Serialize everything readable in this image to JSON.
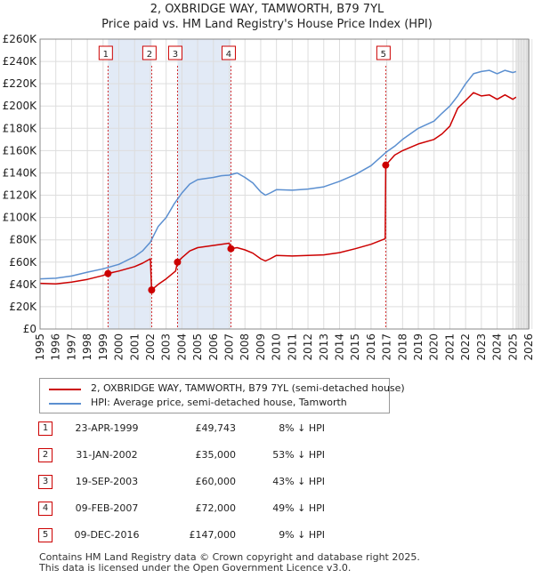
{
  "title_line1": "2, OXBRIDGE WAY, TAMWORTH, B79 7YL",
  "title_line2": "Price paid vs. HM Land Registry's House Price Index (HPI)",
  "chart_data": {
    "type": "line",
    "title": "2, OXBRIDGE WAY, TAMWORTH, B79 7YL — Price paid vs. HM Land Registry's House Price Index (HPI)",
    "xlim": [
      1995,
      2026
    ],
    "ylim": [
      0,
      260000
    ],
    "x_ticks": [
      1995,
      1996,
      1997,
      1998,
      1999,
      2000,
      2001,
      2002,
      2003,
      2004,
      2005,
      2006,
      2007,
      2008,
      2009,
      2010,
      2011,
      2012,
      2013,
      2014,
      2015,
      2016,
      2017,
      2018,
      2019,
      2020,
      2021,
      2022,
      2023,
      2024,
      2025,
      2026
    ],
    "y_ticks": [
      0,
      20000,
      40000,
      60000,
      80000,
      100000,
      120000,
      140000,
      160000,
      180000,
      200000,
      220000,
      240000,
      260000
    ],
    "y_tick_labels": [
      "£0",
      "£20K",
      "£40K",
      "£60K",
      "£80K",
      "£100K",
      "£120K",
      "£140K",
      "£160K",
      "£180K",
      "£200K",
      "£220K",
      "£240K",
      "£260K"
    ],
    "grid": true,
    "shaded_spans": [
      [
        1999.31,
        2002.08
      ],
      [
        2003.72,
        2007.11
      ],
      [
        2025.2,
        2026
      ]
    ],
    "series": [
      {
        "name": "2, OXBRIDGE WAY, TAMWORTH, B79 7YL (semi-detached house)",
        "color": "#cc0000",
        "x": [
          1995.0,
          1996.0,
          1997.0,
          1998.0,
          1999.0,
          1999.31,
          2000.0,
          2001.0,
          2001.5,
          2002.0,
          2002.08,
          2002.5,
          2003.0,
          2003.6,
          2003.72,
          2004.0,
          2004.5,
          2005.0,
          2006.0,
          2006.5,
          2007.0,
          2007.11,
          2007.5,
          2008.0,
          2008.5,
          2009.0,
          2009.3,
          2009.6,
          2010.0,
          2011.0,
          2012.0,
          2013.0,
          2014.0,
          2015.0,
          2016.0,
          2016.9,
          2016.93,
          2017.5,
          2018.0,
          2019.0,
          2020.0,
          2020.5,
          2021.0,
          2021.5,
          2022.0,
          2022.5,
          2023.0,
          2023.5,
          2024.0,
          2024.5,
          2025.0,
          2025.2
        ],
        "values": [
          41000,
          40500,
          42000,
          44500,
          48000,
          49743,
          52000,
          56000,
          59000,
          63000,
          35000,
          40000,
          45000,
          52000,
          60000,
          64000,
          70000,
          73000,
          75000,
          76000,
          77000,
          72000,
          73000,
          71000,
          68000,
          63000,
          61000,
          63000,
          66000,
          65500,
          66000,
          66500,
          68500,
          72000,
          76000,
          81000,
          147000,
          156000,
          160000,
          166000,
          170000,
          175000,
          182000,
          198000,
          205000,
          212000,
          209000,
          210000,
          206000,
          210000,
          206000,
          208000
        ]
      },
      {
        "name": "HPI: Average price, semi-detached house, Tamworth",
        "color": "#5b8fd0",
        "x": [
          1995.0,
          1996.0,
          1997.0,
          1998.0,
          1999.0,
          2000.0,
          2001.0,
          2001.5,
          2002.0,
          2002.5,
          2003.0,
          2003.5,
          2004.0,
          2004.5,
          2005.0,
          2005.5,
          2006.0,
          2006.5,
          2007.0,
          2007.5,
          2008.0,
          2008.5,
          2009.0,
          2009.3,
          2009.6,
          2010.0,
          2011.0,
          2012.0,
          2013.0,
          2014.0,
          2015.0,
          2016.0,
          2017.0,
          2017.5,
          2018.0,
          2019.0,
          2020.0,
          2020.5,
          2021.0,
          2021.5,
          2022.0,
          2022.5,
          2023.0,
          2023.5,
          2024.0,
          2024.5,
          2025.0,
          2025.2
        ],
        "values": [
          45000,
          45500,
          47500,
          51000,
          54000,
          58000,
          65000,
          70000,
          78000,
          92000,
          100000,
          112000,
          122000,
          130000,
          134000,
          135000,
          136000,
          137500,
          138000,
          140000,
          136000,
          131000,
          123000,
          120000,
          122000,
          125000,
          124500,
          125500,
          127500,
          132500,
          138500,
          146500,
          159000,
          164000,
          170000,
          180000,
          186500,
          193500,
          200000,
          209000,
          220000,
          229000,
          231000,
          232000,
          229000,
          232000,
          230000,
          231000
        ]
      }
    ],
    "sales": [
      {
        "label": "1",
        "x": 1999.31,
        "value": 49743
      },
      {
        "label": "2",
        "x": 2002.08,
        "value": 35000
      },
      {
        "label": "3",
        "x": 2003.72,
        "value": 60000
      },
      {
        "label": "4",
        "x": 2007.11,
        "value": 72000
      },
      {
        "label": "5",
        "x": 2016.93,
        "value": 147000
      }
    ]
  },
  "legend": {
    "property_label": "2, OXBRIDGE WAY, TAMWORTH, B79 7YL (semi-detached house)",
    "hpi_label": "HPI: Average price, semi-detached house, Tamworth"
  },
  "transactions": [
    {
      "num": "1",
      "date": "23-APR-1999",
      "price": "£49,743",
      "hpi": "8% ↓ HPI"
    },
    {
      "num": "2",
      "date": "31-JAN-2002",
      "price": "£35,000",
      "hpi": "53% ↓ HPI"
    },
    {
      "num": "3",
      "date": "19-SEP-2003",
      "price": "£60,000",
      "hpi": "43% ↓ HPI"
    },
    {
      "num": "4",
      "date": "09-FEB-2007",
      "price": "£72,000",
      "hpi": "49% ↓ HPI"
    },
    {
      "num": "5",
      "date": "09-DEC-2016",
      "price": "£147,000",
      "hpi": "9% ↓ HPI"
    }
  ],
  "footer_line1": "Contains HM Land Registry data © Crown copyright and database right 2025.",
  "footer_line2": "This data is licensed under the Open Government Licence v3.0."
}
